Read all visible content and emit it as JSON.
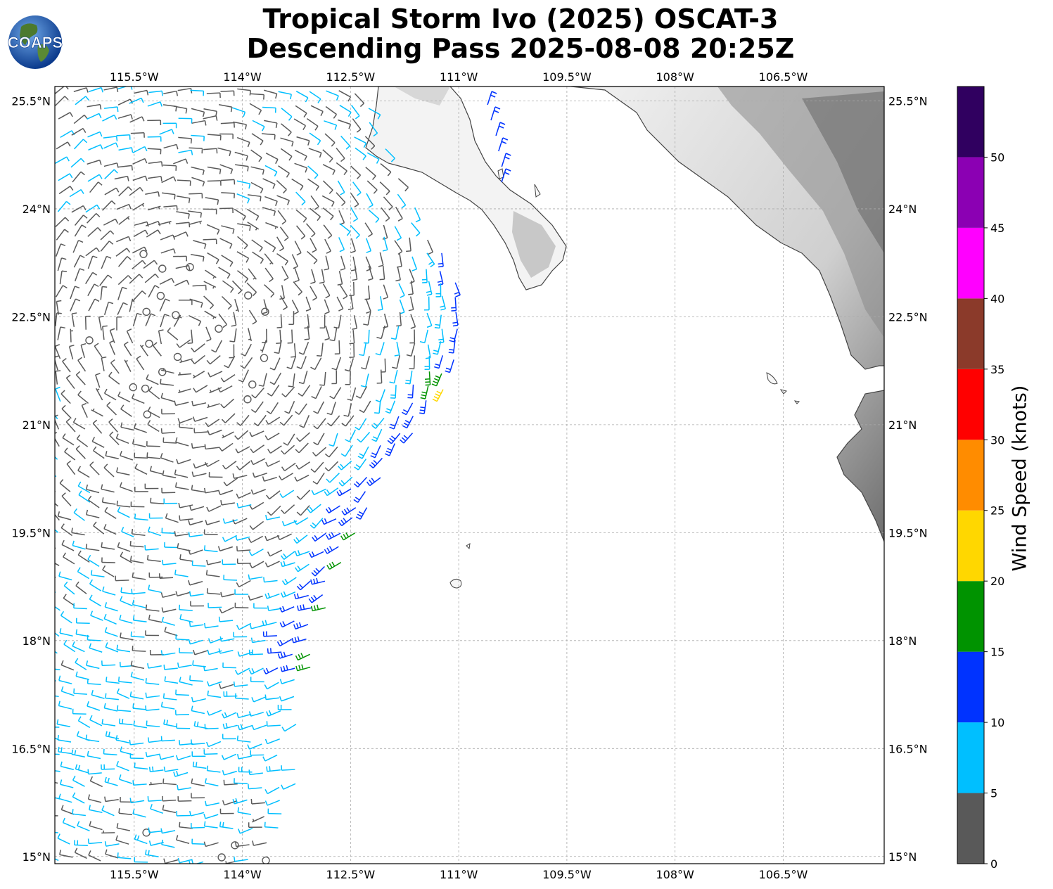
{
  "title": {
    "line1": "Tropical Storm Ivo (2025) OSCAT-3",
    "line2": "Descending Pass 2025-08-08 20:25Z"
  },
  "logo": {
    "text": "COAPS",
    "icon": "globe-icon"
  },
  "map": {
    "lon_range": [
      -116.6,
      -105.1
    ],
    "lat_range": [
      14.9,
      25.7
    ],
    "lon_ticks": [
      "115.5°W",
      "114°W",
      "112.5°W",
      "111°W",
      "109.5°W",
      "108°W",
      "106.5°W"
    ],
    "lon_tick_values": [
      -115.5,
      -114,
      -112.5,
      -111,
      -109.5,
      -108,
      -106.5
    ],
    "lat_ticks": [
      "25.5°N",
      "24°N",
      "22.5°N",
      "21°N",
      "19.5°N",
      "18°N",
      "16.5°N",
      "15°N"
    ],
    "lat_tick_values": [
      25.5,
      24,
      22.5,
      21,
      19.5,
      18,
      16.5,
      15
    ],
    "gridlines": true,
    "land_shading": "grayscale-terrain"
  },
  "colorbar": {
    "label": "Wind Speed (knots)",
    "ticks": [
      "0",
      "5",
      "10",
      "15",
      "20",
      "25",
      "30",
      "35",
      "40",
      "45",
      "50"
    ],
    "bands": [
      {
        "from": 0,
        "to": 5,
        "color": "#595959"
      },
      {
        "from": 5,
        "to": 10,
        "color": "#00bfff"
      },
      {
        "from": 10,
        "to": 15,
        "color": "#0033ff"
      },
      {
        "from": 15,
        "to": 20,
        "color": "#009300"
      },
      {
        "from": 20,
        "to": 25,
        "color": "#ffd700"
      },
      {
        "from": 25,
        "to": 30,
        "color": "#ff8c00"
      },
      {
        "from": 30,
        "to": 35,
        "color": "#ff0000"
      },
      {
        "from": 35,
        "to": 40,
        "color": "#8b3a2a"
      },
      {
        "from": 40,
        "to": 45,
        "color": "#ff00ff"
      },
      {
        "from": 45,
        "to": 50,
        "color": "#8b00b3"
      },
      {
        "from": 50,
        "to": 55,
        "color": "#300060"
      }
    ]
  }
}
